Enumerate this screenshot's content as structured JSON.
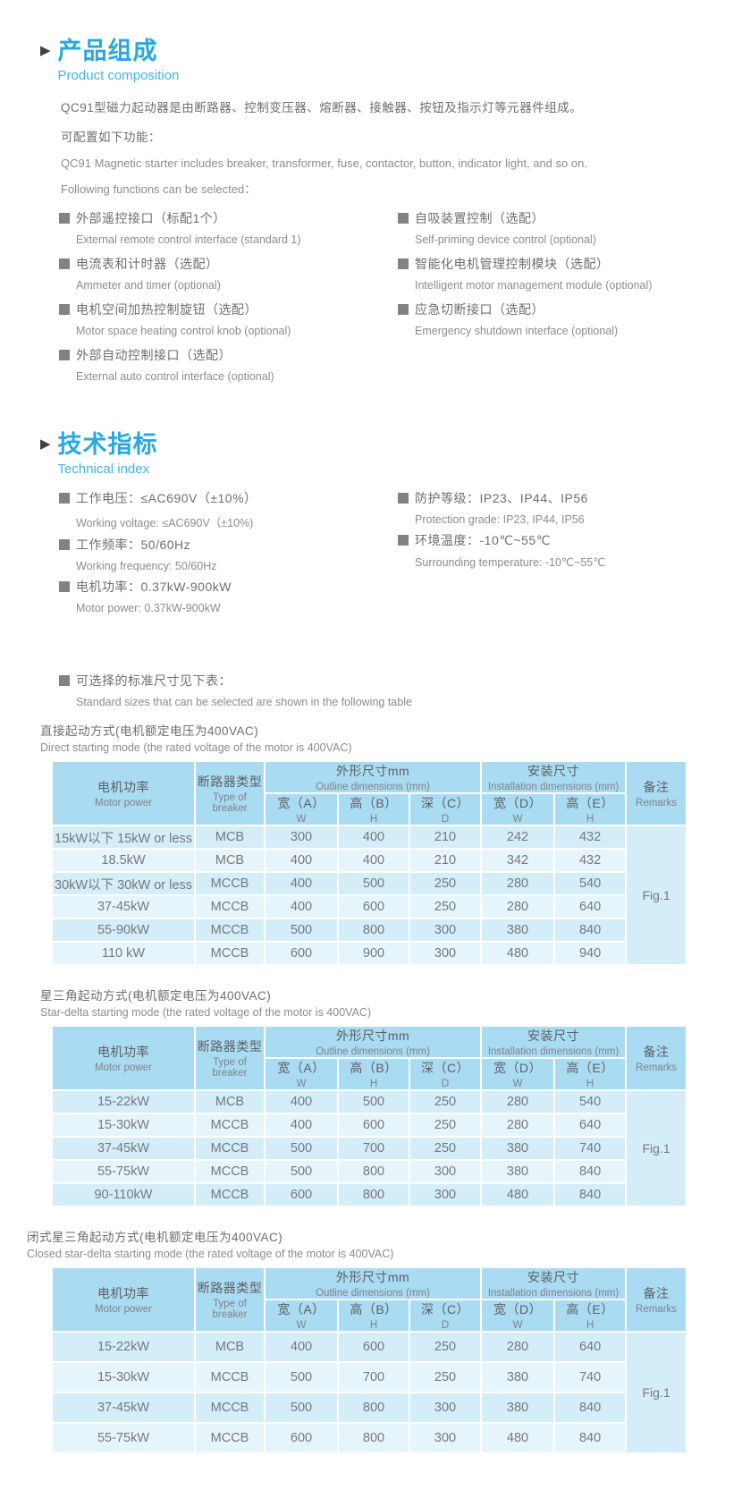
{
  "colors": {
    "accent_blue": "#29a8e0",
    "table_header_bg": "#a9dbf2",
    "row_dark": "#d3edf9",
    "row_light": "#e6f5fc",
    "remark_bg": "#ddf0fa",
    "bullet_gray": "#808285"
  },
  "product": {
    "title_cn": "产品组成",
    "title_en": "Product composition",
    "para_cn1": "QC91型磁力起动器是由断路器、控制变压器、熔断器、接触器、按钮及指示灯等元器件组成。",
    "para_cn2": "可配置如下功能：",
    "para_en1": "QC91 Magnetic starter includes breaker, transformer, fuse, contactor, button, indicator light, and so on.",
    "para_en2": "Following functions can be selected：",
    "features_left": [
      {
        "cn": "外部遥控接口（标配1个）",
        "en": "External remote control interface (standard 1)"
      },
      {
        "cn": "电流表和计时器（选配）",
        "en": "Ammeter and timer (optional)"
      },
      {
        "cn": "电机空间加热控制旋钮（选配）",
        "en": "Motor space heating control knob (optional)"
      },
      {
        "cn": "外部自动控制接口（选配）",
        "en": "External auto control interface (optional)"
      }
    ],
    "features_right": [
      {
        "cn": "自吸装置控制（选配）",
        "en": "Self-priming device control (optional)"
      },
      {
        "cn": "智能化电机管理控制模块（选配）",
        "en": "Intelligent motor management module (optional)"
      },
      {
        "cn": "应急切断接口（选配）",
        "en": "Emergency shutdown interface (optional)"
      }
    ]
  },
  "technical": {
    "title_cn": "技术指标",
    "title_en": "Technical index",
    "items_left": [
      {
        "cn": "工作电压：≤AC690V（±10%）",
        "en": "Working voltage: ≤AC690V（±10%)"
      },
      {
        "cn": "工作频率：50/60Hz",
        "en": "Working frequency: 50/60Hz"
      },
      {
        "cn": "电机功率：0.37kW-900kW",
        "en": "Motor power: 0.37kW-900kW"
      }
    ],
    "items_right": [
      {
        "cn": "防护等级：IP23、IP44、IP56",
        "en": "Protection grade: IP23, IP44, IP56"
      },
      {
        "cn": "环境温度：-10℃~55℃",
        "en": "Surrounding temperature: -10℃~55℃"
      }
    ]
  },
  "standard_note": {
    "cn": "可选择的标准尺寸见下表：",
    "en": "Standard sizes that can be selected are shown in the following table"
  },
  "table_header": {
    "motor_power_cn": "电机功率",
    "motor_power_en": "Motor power",
    "breaker_cn": "断路器类型",
    "breaker_en": "Type of breaker",
    "outline_cn": "外形尺寸mm",
    "outline_en": "Outline dimensions (mm)",
    "install_cn": "安装尺寸",
    "install_en": "Installation dimensions (mm)",
    "remarks_cn": "备注",
    "remarks_en": "Remarks",
    "sub": [
      {
        "cn": "宽（A）",
        "en": "W"
      },
      {
        "cn": "高（B）",
        "en": "H"
      },
      {
        "cn": "深（C）",
        "en": "D"
      },
      {
        "cn": "宽（D）",
        "en": "W"
      },
      {
        "cn": "高（E）",
        "en": "H"
      }
    ]
  },
  "tables": [
    {
      "title_cn": "直接起动方式(电机额定电压为400VAC)",
      "title_en": "Direct starting mode (the rated voltage of the motor is 400VAC)",
      "remark": "Fig.1",
      "rows": [
        [
          "15kW以下 15kW or less",
          "MCB",
          "300",
          "400",
          "210",
          "242",
          "432"
        ],
        [
          "18.5kW",
          "MCB",
          "400",
          "400",
          "210",
          "342",
          "432"
        ],
        [
          "30kW以下 30kW or less",
          "MCCB",
          "400",
          "500",
          "250",
          "280",
          "540"
        ],
        [
          "37-45kW",
          "MCCB",
          "400",
          "600",
          "250",
          "280",
          "640"
        ],
        [
          "55-90kW",
          "MCCB",
          "500",
          "800",
          "300",
          "380",
          "840"
        ],
        [
          "110 kW",
          "MCCB",
          "600",
          "900",
          "300",
          "480",
          "940"
        ]
      ]
    },
    {
      "title_cn": "星三角起动方式(电机额定电压为400VAC)",
      "title_en": "Star-delta starting mode (the rated voltage of the motor is 400VAC)",
      "remark": "Fig.1",
      "rows": [
        [
          "15-22kW",
          "MCB",
          "400",
          "500",
          "250",
          "280",
          "540"
        ],
        [
          "15-30kW",
          "MCCB",
          "400",
          "600",
          "250",
          "280",
          "640"
        ],
        [
          "37-45kW",
          "MCCB",
          "500",
          "700",
          "250",
          "380",
          "740"
        ],
        [
          "55-75kW",
          "MCCB",
          "500",
          "800",
          "300",
          "380",
          "840"
        ],
        [
          "90-110kW",
          "MCCB",
          "600",
          "800",
          "300",
          "480",
          "840"
        ]
      ]
    },
    {
      "title_cn": "闭式星三角起动方式(电机额定电压为400VAC)",
      "title_en": "Closed star-delta starting mode (the rated voltage of the motor is 400VAC)",
      "remark": "Fig.1",
      "rows": [
        [
          "15-22kW",
          "MCB",
          "400",
          "600",
          "250",
          "280",
          "640"
        ],
        [
          "15-30kW",
          "MCCB",
          "500",
          "700",
          "250",
          "380",
          "740"
        ],
        [
          "37-45kW",
          "MCCB",
          "500",
          "800",
          "300",
          "380",
          "840"
        ],
        [
          "55-75kW",
          "MCCB",
          "600",
          "800",
          "300",
          "480",
          "840"
        ]
      ]
    }
  ]
}
